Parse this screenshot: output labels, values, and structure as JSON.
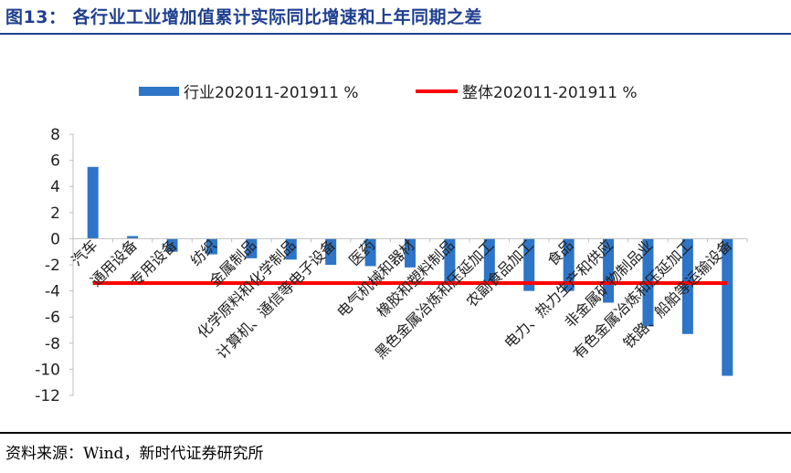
{
  "figure": {
    "title": "图13：  各行业工业增加值累计实际同比增速和上年同期之差",
    "source": "资料来源：Wind，新时代证券研究所"
  },
  "chart_data": {
    "type": "bar",
    "categories": [
      "汽车",
      "通用设备",
      "专用设备",
      "纺织",
      "金属制品",
      "化学原料和化学制品",
      "计算机、通信等电子设备",
      "医药",
      "电气机械和器材",
      "橡胶和塑料制品",
      "黑色金属冶炼和压延加工",
      "农副食品加工",
      "食品",
      "电力、热力生产和供应",
      "非金属矿物制品业",
      "有色金属冶炼和压延加工",
      "铁路、船舶等运输设备"
    ],
    "series": [
      {
        "name": "行业202011-201911 %",
        "type": "bar",
        "color": "#2e75c7",
        "values": [
          5.5,
          0.2,
          -1.0,
          -1.2,
          -1.5,
          -1.6,
          -2.0,
          -2.1,
          -2.2,
          -3.4,
          -3.5,
          -4.0,
          -4.0,
          -4.9,
          -6.7,
          -7.3,
          -10.5
        ]
      },
      {
        "name": "整体202011-201911 %",
        "type": "line",
        "color": "#ff0000",
        "value": -3.4
      }
    ],
    "ylim": [
      -12,
      8
    ],
    "yticks": [
      "8",
      "6",
      "4",
      "2",
      "0",
      "-2",
      "-4",
      "-6",
      "-8",
      "-10",
      "-12"
    ],
    "legend": "top",
    "grid": false
  }
}
